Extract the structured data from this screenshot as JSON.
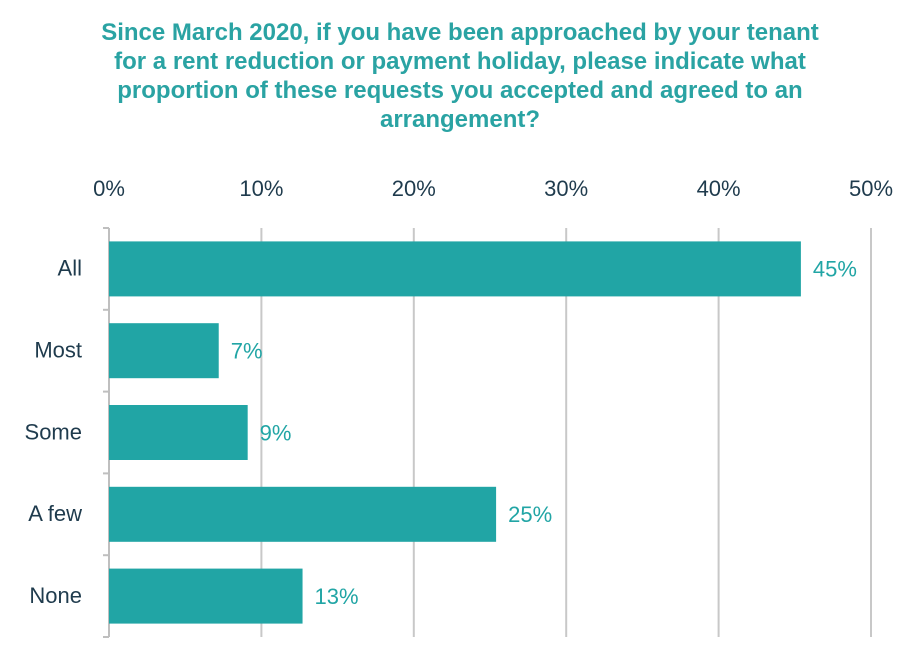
{
  "chart_data": {
    "type": "bar",
    "orientation": "horizontal",
    "title": "Since March 2020, if you have been approached by your tenant for a rent reduction or payment holiday, please indicate what proportion of these requests you accepted and agreed to an arrangement?",
    "categories": [
      "All",
      "Most",
      "Some",
      "A few",
      "None"
    ],
    "values": [
      45.4,
      7.2,
      9.1,
      25.4,
      12.7
    ],
    "value_labels": [
      "45%",
      "7%",
      "9%",
      "25%",
      "13%"
    ],
    "color": "#21a5a5",
    "xlim": [
      0,
      50
    ],
    "xticks": [
      {
        "value": 0,
        "label": "0%"
      },
      {
        "value": 10,
        "label": "10%"
      },
      {
        "value": 20,
        "label": "20%"
      },
      {
        "value": 30,
        "label": "30%"
      },
      {
        "value": 40,
        "label": "40%"
      },
      {
        "value": 50,
        "label": "50%"
      }
    ],
    "grid": true
  }
}
